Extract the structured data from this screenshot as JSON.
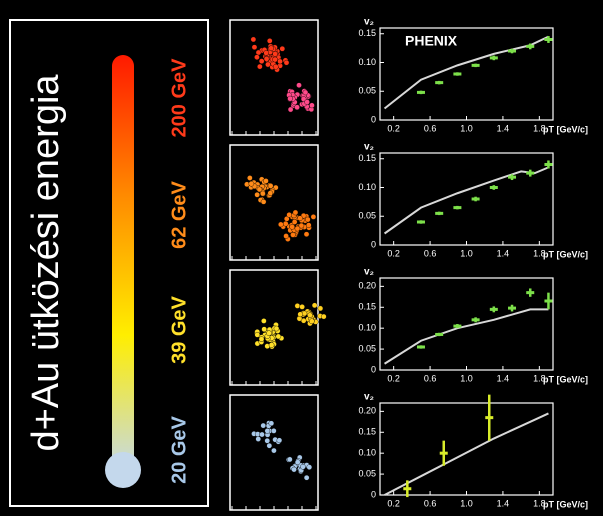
{
  "title": "d+Au ütközési energia",
  "colorbar": [
    "#ff1a00",
    "#ff8a00",
    "#ffee00",
    "#c4d8ec"
  ],
  "energies": [
    {
      "label": "200 GeV",
      "color": "#ff3a1a",
      "color2": "#ff4a8a"
    },
    {
      "label": "62 GeV",
      "color": "#ff8c1a",
      "color2": "#ff7a10"
    },
    {
      "label": "39 GeV",
      "color": "#ffe02a",
      "color2": "#ffd020"
    },
    {
      "label": "20 GeV",
      "color": "#a8c8e8",
      "color2": "#a8c8e8"
    }
  ],
  "chart_data": [
    {
      "type": "scatter",
      "annotation": "PHENIX",
      "ylabel": "v₂",
      "xlabel": "pT [GeV/c]",
      "xlim": [
        0.05,
        1.95
      ],
      "xticks": [
        0.2,
        0.6,
        {
          "value": 1.0,
          "label": "1.0"
        },
        1.4,
        1.8
      ],
      "ylim": [
        0,
        0.16
      ],
      "yticks": [
        0,
        0.05,
        {
          "value": 0.1,
          "label": "0.10"
        },
        0.15
      ],
      "series": [
        {
          "style": "curve",
          "color": "#d8d8d8",
          "x": [
            0.1,
            0.5,
            0.9,
            1.3,
            1.7,
            1.9
          ],
          "values": [
            0.02,
            0.07,
            0.095,
            0.115,
            0.13,
            0.145
          ]
        },
        {
          "style": "points",
          "color": "#7de04a",
          "x": [
            0.5,
            0.7,
            0.9,
            1.1,
            1.3,
            1.5,
            1.7,
            1.9
          ],
          "values": [
            0.048,
            0.065,
            0.08,
            0.095,
            0.108,
            0.12,
            0.128,
            0.14
          ],
          "errors": [
            0.003,
            0.003,
            0.003,
            0.003,
            0.004,
            0.004,
            0.005,
            0.006
          ]
        }
      ]
    },
    {
      "type": "scatter",
      "ylabel": "v₂",
      "xlabel": "pT [GeV/c]",
      "xlim": [
        0.05,
        1.95
      ],
      "xticks": [
        0.2,
        0.6,
        {
          "value": 1.0,
          "label": "1.0"
        },
        1.4,
        1.8
      ],
      "ylim": [
        0,
        0.16
      ],
      "yticks": [
        0,
        0.05,
        {
          "value": 0.1,
          "label": "0.10"
        },
        0.15
      ],
      "series": [
        {
          "style": "curve",
          "color": "#d8d8d8",
          "x": [
            0.1,
            0.5,
            0.9,
            1.3,
            1.6,
            1.75,
            1.9
          ],
          "values": [
            0.02,
            0.065,
            0.09,
            0.112,
            0.128,
            0.125,
            0.135
          ]
        },
        {
          "style": "points",
          "color": "#7de04a",
          "x": [
            0.5,
            0.7,
            0.9,
            1.1,
            1.3,
            1.5,
            1.7,
            1.9
          ],
          "values": [
            0.04,
            0.055,
            0.065,
            0.08,
            0.1,
            0.118,
            0.125,
            0.14
          ],
          "errors": [
            0.003,
            0.003,
            0.003,
            0.004,
            0.004,
            0.005,
            0.006,
            0.007
          ]
        }
      ]
    },
    {
      "type": "scatter",
      "ylabel": "v₂",
      "xlabel": "pT [GeV/c]",
      "xlim": [
        0.05,
        1.95
      ],
      "xticks": [
        0.2,
        0.6,
        {
          "value": 1.0,
          "label": "1.0"
        },
        1.4,
        1.8
      ],
      "ylim": [
        0,
        0.22
      ],
      "yticks": [
        0,
        0.05,
        {
          "value": 0.1,
          "label": "0.10"
        },
        0.15,
        {
          "value": 0.2,
          "label": "0.20"
        }
      ],
      "series": [
        {
          "style": "curve",
          "color": "#d8d8d8",
          "x": [
            0.1,
            0.5,
            0.9,
            1.3,
            1.7,
            1.9
          ],
          "values": [
            0.015,
            0.07,
            0.1,
            0.12,
            0.145,
            0.145
          ]
        },
        {
          "style": "points",
          "color": "#7de04a",
          "x": [
            0.5,
            0.7,
            0.9,
            1.1,
            1.3,
            1.5,
            1.7,
            1.9
          ],
          "values": [
            0.055,
            0.085,
            0.105,
            0.12,
            0.145,
            0.148,
            0.185,
            0.165
          ],
          "errors": [
            0.004,
            0.004,
            0.005,
            0.006,
            0.007,
            0.008,
            0.01,
            0.02
          ]
        }
      ]
    },
    {
      "type": "scatter",
      "ylabel": "v₂",
      "xlabel": "pT [GeV/c]",
      "xlim": [
        0.05,
        1.95
      ],
      "xticks": [
        0.2,
        0.6,
        {
          "value": 1.0,
          "label": "1.0"
        },
        1.4,
        1.8
      ],
      "ylim": [
        0,
        0.22
      ],
      "yticks": [
        0,
        0.05,
        {
          "value": 0.1,
          "label": "0.10"
        },
        0.15,
        {
          "value": 0.2,
          "label": "0.20"
        }
      ],
      "series": [
        {
          "style": "curve",
          "color": "#d8d8d8",
          "x": [
            0.1,
            0.5,
            0.9,
            1.3,
            1.7,
            1.9
          ],
          "values": [
            0.0,
            0.045,
            0.09,
            0.135,
            0.175,
            0.195
          ]
        },
        {
          "style": "points",
          "color": "#d8ec2a",
          "x": [
            0.35,
            0.75,
            1.25
          ],
          "values": [
            0.015,
            0.1,
            0.185
          ],
          "errors": [
            0.02,
            0.03,
            0.055
          ]
        }
      ]
    }
  ]
}
